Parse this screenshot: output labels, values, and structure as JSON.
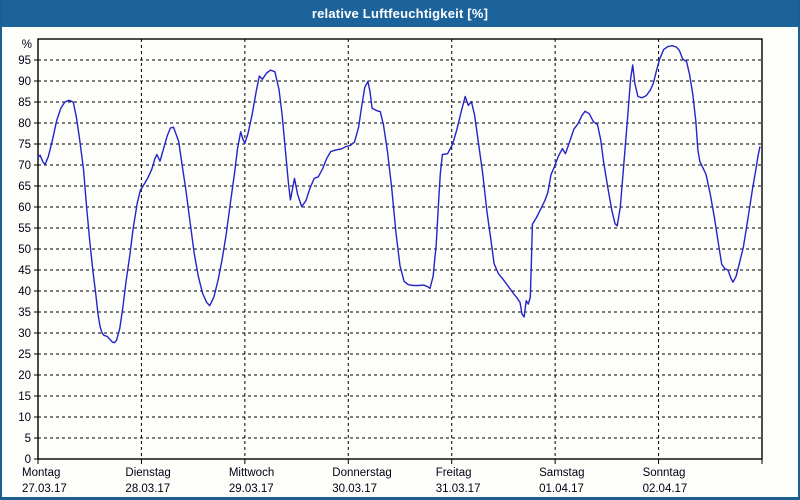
{
  "window": {
    "title": "relative Luftfeuchtigkeit [%]"
  },
  "colors": {
    "titlebar_bg": "#1c639c",
    "titlebar_text": "#ffffff",
    "frame_border": "#1b5f93",
    "background": "#fdfdfa",
    "plot_border": "#000000",
    "grid": "#000000",
    "axis_text": "#000014",
    "line": "#2424c8"
  },
  "chart_data": {
    "type": "line",
    "title": "relative Luftfeuchtigkeit [%]",
    "ylabel": "%",
    "unit": "%",
    "ylim": [
      0,
      100
    ],
    "y_ticks": [
      0,
      5,
      10,
      15,
      20,
      25,
      30,
      35,
      40,
      45,
      50,
      55,
      60,
      65,
      70,
      75,
      80,
      85,
      90,
      95
    ],
    "x_range_days": [
      0,
      7
    ],
    "grid": "dashed",
    "legend_position": "none",
    "x_days": [
      {
        "name": "Montag",
        "date": "27.03.17"
      },
      {
        "name": "Dienstag",
        "date": "28.03.17"
      },
      {
        "name": "Mittwoch",
        "date": "29.03.17"
      },
      {
        "name": "Donnerstag",
        "date": "30.03.17"
      },
      {
        "name": "Freitag",
        "date": "31.03.17"
      },
      {
        "name": "Samstag",
        "date": "01.04.17"
      },
      {
        "name": "Sonntag",
        "date": "02.04.17"
      }
    ],
    "series": [
      {
        "name": "relative Luftfeuchtigkeit",
        "points": [
          [
            0.0,
            71.8
          ],
          [
            0.02,
            72.3
          ],
          [
            0.05,
            70.6
          ],
          [
            0.07,
            70.2
          ],
          [
            0.1,
            72.0
          ],
          [
            0.14,
            76.0
          ],
          [
            0.18,
            80.5
          ],
          [
            0.22,
            83.5
          ],
          [
            0.26,
            85.0
          ],
          [
            0.3,
            85.4
          ],
          [
            0.34,
            85.0
          ],
          [
            0.37,
            81.5
          ],
          [
            0.4,
            76.5
          ],
          [
            0.44,
            69.0
          ],
          [
            0.47,
            60.0
          ],
          [
            0.5,
            52.0
          ],
          [
            0.53,
            45.0
          ],
          [
            0.56,
            39.0
          ],
          [
            0.58,
            34.5
          ],
          [
            0.6,
            31.5
          ],
          [
            0.62,
            30.0
          ],
          [
            0.64,
            29.4
          ],
          [
            0.67,
            29.2
          ],
          [
            0.69,
            28.6
          ],
          [
            0.72,
            27.8
          ],
          [
            0.74,
            27.7
          ],
          [
            0.76,
            28.3
          ],
          [
            0.79,
            31.0
          ],
          [
            0.82,
            36.0
          ],
          [
            0.85,
            42.0
          ],
          [
            0.89,
            49.0
          ],
          [
            0.92,
            55.0
          ],
          [
            0.96,
            61.0
          ],
          [
            0.99,
            64.0
          ],
          [
            1.02,
            65.2
          ],
          [
            1.06,
            66.8
          ],
          [
            1.1,
            69.0
          ],
          [
            1.13,
            71.5
          ],
          [
            1.15,
            72.5
          ],
          [
            1.18,
            70.9
          ],
          [
            1.21,
            73.5
          ],
          [
            1.25,
            77.0
          ],
          [
            1.28,
            78.8
          ],
          [
            1.31,
            79.0
          ],
          [
            1.34,
            77.0
          ],
          [
            1.36,
            75.6
          ],
          [
            1.39,
            70.5
          ],
          [
            1.43,
            64.0
          ],
          [
            1.47,
            56.5
          ],
          [
            1.51,
            49.0
          ],
          [
            1.55,
            43.5
          ],
          [
            1.59,
            39.5
          ],
          [
            1.63,
            37.3
          ],
          [
            1.66,
            36.5
          ],
          [
            1.7,
            38.5
          ],
          [
            1.74,
            42.5
          ],
          [
            1.78,
            47.5
          ],
          [
            1.82,
            53.5
          ],
          [
            1.86,
            61.0
          ],
          [
            1.9,
            68.0
          ],
          [
            1.93,
            74.0
          ],
          [
            1.96,
            77.9
          ],
          [
            1.98,
            76.2
          ],
          [
            2.0,
            75.2
          ],
          [
            2.03,
            77.5
          ],
          [
            2.07,
            82.0
          ],
          [
            2.11,
            87.5
          ],
          [
            2.14,
            91.2
          ],
          [
            2.17,
            90.4
          ],
          [
            2.21,
            91.9
          ],
          [
            2.25,
            92.6
          ],
          [
            2.29,
            92.2
          ],
          [
            2.33,
            88.0
          ],
          [
            2.36,
            82.0
          ],
          [
            2.39,
            74.0
          ],
          [
            2.42,
            66.0
          ],
          [
            2.44,
            61.7
          ],
          [
            2.48,
            66.8
          ],
          [
            2.51,
            63.0
          ],
          [
            2.55,
            60.1
          ],
          [
            2.59,
            61.5
          ],
          [
            2.63,
            64.5
          ],
          [
            2.67,
            66.8
          ],
          [
            2.71,
            67.2
          ],
          [
            2.75,
            69.0
          ],
          [
            2.79,
            71.5
          ],
          [
            2.83,
            73.2
          ],
          [
            2.88,
            73.6
          ],
          [
            2.93,
            73.8
          ],
          [
            2.98,
            74.4
          ],
          [
            3.02,
            74.7
          ],
          [
            3.06,
            75.5
          ],
          [
            3.1,
            79.0
          ],
          [
            3.13,
            84.0
          ],
          [
            3.16,
            88.5
          ],
          [
            3.19,
            89.9
          ],
          [
            3.21,
            87.5
          ],
          [
            3.23,
            83.5
          ],
          [
            3.27,
            83.0
          ],
          [
            3.31,
            82.7
          ],
          [
            3.34,
            79.5
          ],
          [
            3.38,
            73.0
          ],
          [
            3.42,
            64.5
          ],
          [
            3.46,
            54.0
          ],
          [
            3.5,
            46.0
          ],
          [
            3.54,
            42.3
          ],
          [
            3.58,
            41.5
          ],
          [
            3.63,
            41.3
          ],
          [
            3.68,
            41.3
          ],
          [
            3.73,
            41.4
          ],
          [
            3.77,
            41.0
          ],
          [
            3.79,
            40.6
          ],
          [
            3.82,
            43.5
          ],
          [
            3.85,
            51.0
          ],
          [
            3.87,
            60.0
          ],
          [
            3.89,
            67.9
          ],
          [
            3.91,
            72.5
          ],
          [
            3.96,
            72.7
          ],
          [
            4.01,
            75.0
          ],
          [
            4.05,
            78.5
          ],
          [
            4.09,
            82.5
          ],
          [
            4.13,
            86.3
          ],
          [
            4.16,
            84.2
          ],
          [
            4.19,
            85.1
          ],
          [
            4.22,
            82.0
          ],
          [
            4.26,
            75.0
          ],
          [
            4.3,
            68.0
          ],
          [
            4.34,
            59.0
          ],
          [
            4.38,
            52.0
          ],
          [
            4.41,
            46.5
          ],
          [
            4.45,
            44.2
          ],
          [
            4.49,
            43.0
          ],
          [
            4.53,
            41.7
          ],
          [
            4.57,
            40.3
          ],
          [
            4.6,
            39.3
          ],
          [
            4.63,
            38.4
          ],
          [
            4.66,
            37.3
          ],
          [
            4.68,
            34.5
          ],
          [
            4.7,
            33.8
          ],
          [
            4.72,
            37.7
          ],
          [
            4.74,
            36.9
          ],
          [
            4.76,
            38.5
          ],
          [
            4.77,
            47.0
          ],
          [
            4.78,
            55.9
          ],
          [
            4.82,
            57.5
          ],
          [
            4.86,
            59.5
          ],
          [
            4.9,
            61.5
          ],
          [
            4.93,
            63.5
          ],
          [
            4.96,
            67.7
          ],
          [
            4.99,
            69.4
          ],
          [
            5.03,
            72.0
          ],
          [
            5.07,
            73.9
          ],
          [
            5.1,
            72.7
          ],
          [
            5.14,
            75.5
          ],
          [
            5.18,
            78.5
          ],
          [
            5.22,
            79.8
          ],
          [
            5.26,
            81.8
          ],
          [
            5.29,
            82.8
          ],
          [
            5.33,
            82.2
          ],
          [
            5.37,
            80.3
          ],
          [
            5.41,
            79.6
          ],
          [
            5.44,
            76.0
          ],
          [
            5.47,
            70.4
          ],
          [
            5.51,
            64.5
          ],
          [
            5.55,
            59.0
          ],
          [
            5.58,
            56.0
          ],
          [
            5.6,
            55.5
          ],
          [
            5.63,
            60.0
          ],
          [
            5.66,
            69.0
          ],
          [
            5.7,
            81.0
          ],
          [
            5.73,
            90.5
          ],
          [
            5.75,
            93.8
          ],
          [
            5.77,
            89.5
          ],
          [
            5.8,
            86.3
          ],
          [
            5.84,
            86.0
          ],
          [
            5.88,
            86.5
          ],
          [
            5.92,
            87.8
          ],
          [
            5.95,
            89.5
          ],
          [
            5.98,
            92.5
          ],
          [
            6.01,
            95.2
          ],
          [
            6.05,
            97.5
          ],
          [
            6.09,
            98.2
          ],
          [
            6.13,
            98.4
          ],
          [
            6.17,
            98.1
          ],
          [
            6.2,
            97.3
          ],
          [
            6.23,
            95.4
          ],
          [
            6.25,
            94.9
          ],
          [
            6.27,
            94.7
          ],
          [
            6.3,
            91.5
          ],
          [
            6.33,
            87.0
          ],
          [
            6.36,
            80.5
          ],
          [
            6.38,
            73.5
          ],
          [
            6.4,
            70.8
          ],
          [
            6.43,
            69.3
          ],
          [
            6.46,
            67.7
          ],
          [
            6.5,
            63.0
          ],
          [
            6.54,
            57.5
          ],
          [
            6.58,
            51.0
          ],
          [
            6.61,
            46.4
          ],
          [
            6.64,
            45.3
          ],
          [
            6.67,
            45.0
          ],
          [
            6.7,
            43.0
          ],
          [
            6.72,
            42.1
          ],
          [
            6.75,
            43.5
          ],
          [
            6.78,
            46.4
          ],
          [
            6.82,
            50.5
          ],
          [
            6.85,
            55.1
          ],
          [
            6.88,
            59.8
          ],
          [
            6.91,
            64.6
          ],
          [
            6.94,
            68.8
          ],
          [
            6.96,
            72.0
          ],
          [
            6.98,
            74.3
          ]
        ]
      }
    ]
  }
}
